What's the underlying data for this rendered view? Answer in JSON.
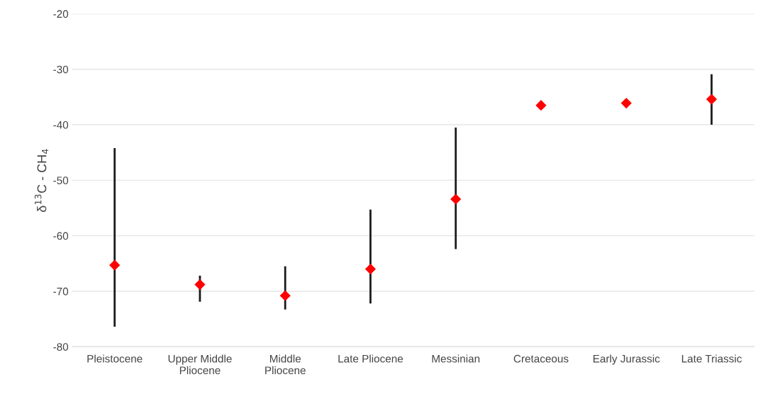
{
  "chart_data": {
    "type": "scatter",
    "ylabel": "δ$^{13}$C - CH$_{4}$",
    "categories": [
      "Pleistocene",
      "Upper Middle Pliocene",
      "Middle Pliocene",
      "Late Pliocene",
      "Messinian",
      "Cretaceous",
      "Early Jurassic",
      "Late Triassic"
    ],
    "series": [
      {
        "color": "#ff0000",
        "values": [
          -65.3,
          -68.8,
          -70.8,
          -66.0,
          -53.4,
          -36.5,
          -36.1,
          -35.4
        ],
        "errors": [
          [
            -76.4,
            -44.2
          ],
          [
            -71.9,
            -67.2
          ],
          [
            -73.3,
            -65.5
          ],
          [
            -72.2,
            -55.3
          ],
          [
            -62.4,
            -40.5
          ],
          null,
          null,
          [
            -40.0,
            -30.9
          ]
        ]
      }
    ],
    "marker": "diamond",
    "ylim": [
      -80,
      -20
    ],
    "yticks": [
      -80,
      -70,
      -60,
      -50,
      -40,
      -30,
      -20
    ],
    "grid": "y",
    "legend": false
  }
}
